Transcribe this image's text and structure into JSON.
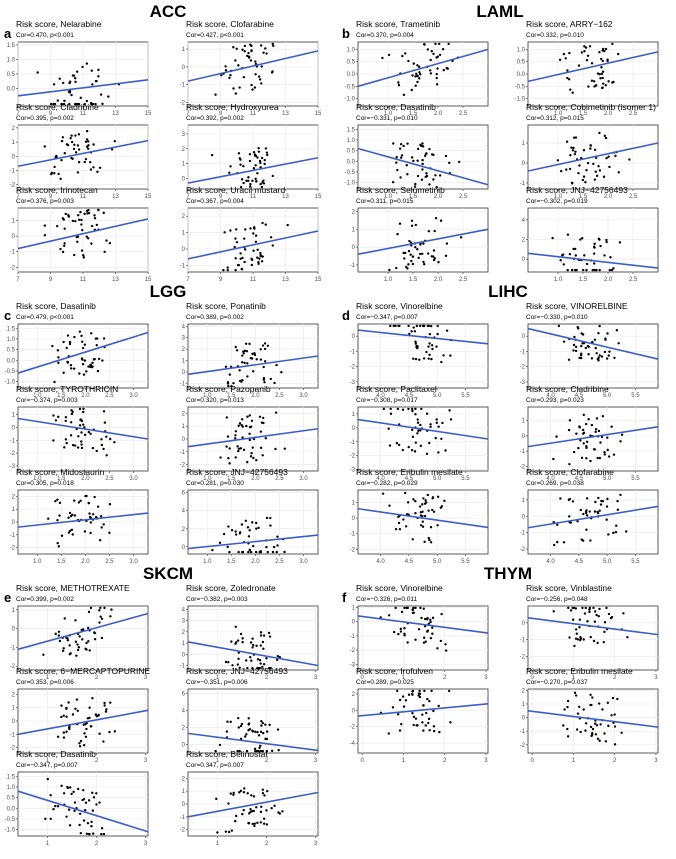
{
  "figure": {
    "sections": [
      {
        "cancer": "ACC",
        "letter": "a",
        "panels": [
          {
            "drug": "Nelarabine",
            "stat": "Cor=0.470, p<0.001"
          },
          {
            "drug": "Clofarabine",
            "stat": "Cor=0.427, p<0.001"
          },
          {
            "drug": "Cladribine",
            "stat": "Cor=0.395, p=0.002"
          },
          {
            "drug": "Hydroxyurea",
            "stat": "Cor=0.392, p=0.002"
          },
          {
            "drug": "Irinotecan",
            "stat": "Cor=0.376, p=0.003"
          },
          {
            "drug": "Uracil mustard",
            "stat": "Cor=0.367, p=0.004"
          }
        ]
      },
      {
        "cancer": "LAML",
        "letter": "b",
        "panels": [
          {
            "drug": "Trametinib",
            "stat": "Cor=0.370, p=0.004"
          },
          {
            "drug": "ARRY−162",
            "stat": "Cor=0.332, p=0.010"
          },
          {
            "drug": "Dasatinib",
            "stat": "Cor=−0.331, p=0.010"
          },
          {
            "drug": "Cobimetinib (isomer 1)",
            "stat": "Cor=0.312, p=0.015"
          },
          {
            "drug": "Selumetinib",
            "stat": "Cor=0.311, p=0.015"
          },
          {
            "drug": "JNJ−42756493",
            "stat": "Cor=−0.302, p=0.019"
          }
        ]
      },
      {
        "cancer": "LGG",
        "letter": "c",
        "panels": [
          {
            "drug": "Dasatinib",
            "stat": "Cor=0.479, p<0.001"
          },
          {
            "drug": "Ponatinib",
            "stat": "Cor=0.389, p=0.002"
          },
          {
            "drug": "TYROTHRICIN",
            "stat": "Cor=−0.374, p=0.003"
          },
          {
            "drug": "Pazopanib",
            "stat": "Cor=0.320, p=0.013"
          },
          {
            "drug": "Midostaurin",
            "stat": "Cor=0.305, p=0.018"
          },
          {
            "drug": "JNJ−42756493",
            "stat": "Cor=0.281, p=0.030"
          }
        ]
      },
      {
        "cancer": "LIHC",
        "letter": "d",
        "panels": [
          {
            "drug": "Vinorelbine",
            "stat": "Cor=−0.347, p=0.007"
          },
          {
            "drug": "VINORELBINE",
            "stat": "Cor=−0.330, p=0.010"
          },
          {
            "drug": "Paclitaxel",
            "stat": "Cor=−0.308, p=0.017"
          },
          {
            "drug": "Cladribine",
            "stat": "Cor=0.293, p=0.023"
          },
          {
            "drug": "Eribulin mesilate",
            "stat": "Cor=−0.282, p=0.029"
          },
          {
            "drug": "Clofarabine",
            "stat": "Cor=0.269, p=0.038"
          }
        ]
      },
      {
        "cancer": "SKCM",
        "letter": "e",
        "panels": [
          {
            "drug": "METHOTREXATE",
            "stat": "Cor=0.399, p=0.002"
          },
          {
            "drug": "Zoledronate",
            "stat": "Cor=−0.382, p=0.003"
          },
          {
            "drug": "6−MERCAPTOPURINE",
            "stat": "Cor=0.353, p=0.006"
          },
          {
            "drug": "JNJ−42756493",
            "stat": "Cor=−0.351, p=0.006"
          },
          {
            "drug": "Dasatinib",
            "stat": "Cor=−0.347, p=0.007"
          },
          {
            "drug": "Belinostat",
            "stat": "Cor=0.347, p=0.007"
          }
        ]
      },
      {
        "cancer": "THYM",
        "letter": "f",
        "panels": [
          {
            "drug": "Vinorelbine",
            "stat": "Cor=−0.326, p=0.011"
          },
          {
            "drug": "Vinblastine",
            "stat": "Cor=−0.256, p=0.048"
          },
          {
            "drug": "Irofulven",
            "stat": "Cor=0.289, p=0.025"
          },
          {
            "drug": "Eribulin mesilate",
            "stat": "Cor=−0.270, p=0.037"
          }
        ]
      }
    ],
    "risk_prefix": "Risk score, ",
    "colors": {
      "line": "#3a5fcd",
      "point": "#000000",
      "grid": "#ebebeb",
      "panel_border": "#333333"
    }
  },
  "chart_data": [
    {
      "type": "scatter",
      "panel": "a1",
      "xlim": [
        7,
        15
      ],
      "ylim": [
        -0.6,
        1.6
      ],
      "xticks": [
        "7",
        "9",
        "11",
        "13",
        "15"
      ],
      "yticks": [
        "0.0",
        "0.5",
        "1.0",
        "1.5"
      ],
      "trend": [
        [
          7,
          -0.25
        ],
        [
          15,
          0.3
        ]
      ]
    },
    {
      "type": "scatter",
      "panel": "a2",
      "xlim": [
        7,
        15
      ],
      "ylim": [
        -2.2,
        1.4
      ],
      "xticks": [
        "7",
        "9",
        "11",
        "13",
        "15"
      ],
      "yticks": [
        "-2",
        "-1",
        "0",
        "1"
      ],
      "trend": [
        [
          7,
          -0.8
        ],
        [
          15,
          0.9
        ]
      ]
    },
    {
      "type": "scatter",
      "panel": "a3",
      "xlim": [
        7,
        15
      ],
      "ylim": [
        -2.3,
        2.2
      ],
      "xticks": [
        "7",
        "9",
        "11",
        "13",
        "15"
      ],
      "yticks": [
        "-2",
        "-1",
        "0",
        "1",
        "2"
      ],
      "trend": [
        [
          7,
          -0.7
        ],
        [
          15,
          1.1
        ]
      ]
    },
    {
      "type": "scatter",
      "panel": "a4",
      "xlim": [
        7,
        15
      ],
      "ylim": [
        -0.7,
        3.6
      ],
      "xticks": [
        "7",
        "9",
        "11",
        "13",
        "15"
      ],
      "yticks": [
        "0",
        "1",
        "2",
        "3"
      ],
      "trend": [
        [
          7,
          -0.3
        ],
        [
          15,
          1.4
        ]
      ]
    },
    {
      "type": "scatter",
      "panel": "a5",
      "xlim": [
        7,
        15
      ],
      "ylim": [
        -2.3,
        1.8
      ],
      "xticks": [
        "7",
        "9",
        "11",
        "13",
        "15"
      ],
      "yticks": [
        "-2",
        "-1",
        "0",
        "1"
      ],
      "trend": [
        [
          7,
          -0.8
        ],
        [
          15,
          1.1
        ]
      ]
    },
    {
      "type": "scatter",
      "panel": "a6",
      "xlim": [
        7,
        15
      ],
      "ylim": [
        -1.4,
        2.5
      ],
      "xticks": [
        "7",
        "9",
        "11",
        "13",
        "15"
      ],
      "yticks": [
        "-1",
        "0",
        "1",
        "2"
      ],
      "trend": [
        [
          7,
          -0.6
        ],
        [
          15,
          1.1
        ]
      ]
    },
    {
      "type": "scatter",
      "panel": "b1",
      "xlim": [
        0.4,
        3.0
      ],
      "ylim": [
        -1.3,
        1.3
      ],
      "xticks": [
        "1.0",
        "1.5",
        "2.0",
        "2.5"
      ],
      "yticks": [
        "-1.0",
        "-0.5",
        "0.0",
        "0.5",
        "1.0"
      ],
      "trend": [
        [
          0.4,
          -0.5
        ],
        [
          3.0,
          1.0
        ]
      ]
    },
    {
      "type": "scatter",
      "panel": "b2",
      "xlim": [
        0.4,
        3.0
      ],
      "ylim": [
        -1.3,
        1.3
      ],
      "xticks": [
        "1.0",
        "1.5",
        "2.0",
        "2.5"
      ],
      "yticks": [
        "-1.0",
        "-0.5",
        "0.0",
        "0.5",
        "1.0"
      ],
      "trend": [
        [
          0.4,
          -0.3
        ],
        [
          3.0,
          0.9
        ]
      ]
    },
    {
      "type": "scatter",
      "panel": "b3",
      "xlim": [
        0.4,
        3.0
      ],
      "ylim": [
        -1.3,
        1.7
      ],
      "xticks": [
        "1.0",
        "1.5",
        "2.0",
        "2.5"
      ],
      "yticks": [
        "-1.0",
        "-0.5",
        "0.0",
        "0.5",
        "1.0",
        "1.5"
      ],
      "trend": [
        [
          0.4,
          0.6
        ],
        [
          3.0,
          -1.1
        ]
      ]
    },
    {
      "type": "scatter",
      "panel": "b4",
      "xlim": [
        0.4,
        3.0
      ],
      "ylim": [
        -1.3,
        1.9
      ],
      "xticks": [
        "1.0",
        "1.5",
        "2.0",
        "2.5"
      ],
      "yticks": [
        "-1",
        "0",
        "1"
      ],
      "trend": [
        [
          0.4,
          -0.4
        ],
        [
          3.0,
          1.0
        ]
      ]
    },
    {
      "type": "scatter",
      "panel": "b5",
      "xlim": [
        0.4,
        3.0
      ],
      "ylim": [
        -1.4,
        2.2
      ],
      "xticks": [
        "1.0",
        "1.5",
        "2.0",
        "2.5"
      ],
      "yticks": [
        "-1",
        "0",
        "1",
        "2"
      ],
      "trend": [
        [
          0.4,
          -0.4
        ],
        [
          3.0,
          1.0
        ]
      ]
    },
    {
      "type": "scatter",
      "panel": "b6",
      "xlim": [
        0.4,
        3.0
      ],
      "ylim": [
        -1.3,
        5.2
      ],
      "xticks": [
        "1.0",
        "1.5",
        "2.0",
        "2.5"
      ],
      "yticks": [
        "0",
        "2",
        "4"
      ],
      "trend": [
        [
          0.4,
          0.6
        ],
        [
          3.0,
          -0.9
        ]
      ]
    },
    {
      "type": "scatter",
      "panel": "c1",
      "xlim": [
        0.6,
        3.3
      ],
      "ylim": [
        -1.3,
        1.7
      ],
      "xticks": [
        "1.0",
        "1.5",
        "2.0",
        "2.5",
        "3.0"
      ],
      "yticks": [
        "-1.0",
        "-0.5",
        "0.0",
        "0.5",
        "1.0",
        "1.5"
      ],
      "trend": [
        [
          0.6,
          -0.6
        ],
        [
          3.3,
          1.3
        ]
      ]
    },
    {
      "type": "scatter",
      "panel": "c2",
      "xlim": [
        0.6,
        3.3
      ],
      "ylim": [
        -1.4,
        4.2
      ],
      "xticks": [
        "1.0",
        "1.5",
        "2.0",
        "2.5",
        "3.0"
      ],
      "yticks": [
        "-1",
        "0",
        "1",
        "2",
        "3",
        "4"
      ],
      "trend": [
        [
          0.6,
          -0.2
        ],
        [
          3.3,
          1.4
        ]
      ]
    },
    {
      "type": "scatter",
      "panel": "c3",
      "xlim": [
        0.6,
        3.3
      ],
      "ylim": [
        -3.4,
        1.6
      ],
      "xticks": [
        "1.0",
        "1.5",
        "2.0",
        "2.5",
        "3.0"
      ],
      "yticks": [
        "-3",
        "-2",
        "-1",
        "0",
        "1"
      ],
      "trend": [
        [
          0.6,
          0.7
        ],
        [
          3.3,
          -0.9
        ]
      ]
    },
    {
      "type": "scatter",
      "panel": "c4",
      "xlim": [
        0.6,
        3.3
      ],
      "ylim": [
        -2.5,
        2.5
      ],
      "xticks": [
        "1.0",
        "1.5",
        "2.0",
        "2.5",
        "3.0"
      ],
      "yticks": [
        "-2",
        "-1",
        "0",
        "1",
        "2"
      ],
      "trend": [
        [
          0.6,
          -0.6
        ],
        [
          3.3,
          0.8
        ]
      ]
    },
    {
      "type": "scatter",
      "panel": "c5",
      "xlim": [
        0.6,
        3.3
      ],
      "ylim": [
        -2.5,
        2.5
      ],
      "xticks": [
        "1.0",
        "1.5",
        "2.0",
        "2.5",
        "3.0"
      ],
      "yticks": [
        "-2",
        "-1",
        "0",
        "1",
        "2"
      ],
      "trend": [
        [
          0.6,
          -0.4
        ],
        [
          3.3,
          0.7
        ]
      ]
    },
    {
      "type": "scatter",
      "panel": "c6",
      "xlim": [
        0.6,
        3.3
      ],
      "ylim": [
        -0.8,
        6.3
      ],
      "xticks": [
        "1.0",
        "1.5",
        "2.0",
        "2.5",
        "3.0"
      ],
      "yticks": [
        "0",
        "2",
        "4",
        "6"
      ],
      "trend": [
        [
          0.6,
          -0.2
        ],
        [
          3.3,
          1.3
        ]
      ]
    },
    {
      "type": "scatter",
      "panel": "d1",
      "xlim": [
        3.6,
        5.9
      ],
      "ylim": [
        -3.4,
        0.8
      ],
      "xticks": [
        "4.0",
        "4.5",
        "5.0",
        "5.5"
      ],
      "yticks": [
        "-3",
        "-2",
        "-1",
        "0"
      ],
      "trend": [
        [
          3.6,
          0.4
        ],
        [
          5.9,
          -0.5
        ]
      ]
    },
    {
      "type": "scatter",
      "panel": "d2",
      "xlim": [
        3.6,
        5.9
      ],
      "ylim": [
        -3.4,
        0.8
      ],
      "xticks": [
        "4.0",
        "4.5",
        "5.0",
        "5.5"
      ],
      "yticks": [
        "-3",
        "-2",
        "-1",
        "0"
      ],
      "trend": [
        [
          3.6,
          0.5
        ],
        [
          5.9,
          -1.5
        ]
      ]
    },
    {
      "type": "scatter",
      "panel": "d3",
      "xlim": [
        3.6,
        5.9
      ],
      "ylim": [
        -3.1,
        1.5
      ],
      "xticks": [
        "4.0",
        "4.5",
        "5.0",
        "5.5"
      ],
      "yticks": [
        "-3",
        "-2",
        "-1",
        "0",
        "1"
      ],
      "trend": [
        [
          3.6,
          0.6
        ],
        [
          5.9,
          -0.8
        ]
      ]
    },
    {
      "type": "scatter",
      "panel": "d4",
      "xlim": [
        3.6,
        5.9
      ],
      "ylim": [
        -2.3,
        1.9
      ],
      "xticks": [
        "4.0",
        "4.5",
        "5.0",
        "5.5"
      ],
      "yticks": [
        "-2",
        "-1",
        "0",
        "1"
      ],
      "trend": [
        [
          3.6,
          -0.7
        ],
        [
          5.9,
          0.6
        ]
      ]
    },
    {
      "type": "scatter",
      "panel": "d5",
      "xlim": [
        3.6,
        5.9
      ],
      "ylim": [
        -2.3,
        1.8
      ],
      "xticks": [
        "4.0",
        "4.5",
        "5.0",
        "5.5"
      ],
      "yticks": [
        "-2",
        "-1",
        "0",
        "1"
      ],
      "trend": [
        [
          3.6,
          0.6
        ],
        [
          5.9,
          -0.6
        ]
      ]
    },
    {
      "type": "scatter",
      "panel": "d6",
      "xlim": [
        3.6,
        5.9
      ],
      "ylim": [
        -2.3,
        1.6
      ],
      "xticks": [
        "4.0",
        "4.5",
        "5.0",
        "5.5"
      ],
      "yticks": [
        "-2",
        "-1",
        "0",
        "1"
      ],
      "trend": [
        [
          3.6,
          -0.7
        ],
        [
          5.9,
          0.6
        ]
      ]
    },
    {
      "type": "scatter",
      "panel": "e1",
      "xlim": [
        0.4,
        3.05
      ],
      "ylim": [
        -2.2,
        1.2
      ],
      "xticks": [
        "1",
        "2",
        "3"
      ],
      "yticks": [
        "-2",
        "-1",
        "0",
        "1"
      ],
      "trend": [
        [
          0.4,
          -1.1
        ],
        [
          3.05,
          0.8
        ]
      ]
    },
    {
      "type": "scatter",
      "panel": "e2",
      "xlim": [
        0.4,
        3.05
      ],
      "ylim": [
        -1.4,
        4.3
      ],
      "xticks": [
        "1",
        "2",
        "3"
      ],
      "yticks": [
        "-1",
        "0",
        "1",
        "2",
        "3",
        "4"
      ],
      "trend": [
        [
          0.4,
          1.1
        ],
        [
          3.05,
          -1.0
        ]
      ]
    },
    {
      "type": "scatter",
      "panel": "e3",
      "xlim": [
        0.4,
        3.05
      ],
      "ylim": [
        -2.4,
        2.4
      ],
      "xticks": [
        "1",
        "2",
        "3"
      ],
      "yticks": [
        "-2",
        "-1",
        "0",
        "1",
        "2"
      ],
      "trend": [
        [
          0.4,
          -1.0
        ],
        [
          3.05,
          0.8
        ]
      ]
    },
    {
      "type": "scatter",
      "panel": "e4",
      "xlim": [
        0.4,
        3.05
      ],
      "ylim": [
        -1.0,
        6.5
      ],
      "xticks": [
        "1",
        "2",
        "3"
      ],
      "yticks": [
        "0",
        "2",
        "4",
        "6"
      ],
      "trend": [
        [
          0.4,
          1.3
        ],
        [
          3.05,
          -0.7
        ]
      ]
    },
    {
      "type": "scatter",
      "panel": "e5",
      "xlim": [
        0.4,
        3.05
      ],
      "ylim": [
        -1.3,
        1.7
      ],
      "xticks": [
        "1",
        "2",
        "3"
      ],
      "yticks": [
        "-1.0",
        "-0.5",
        "0.0",
        "0.5",
        "1.0",
        "1.5"
      ],
      "trend": [
        [
          0.4,
          0.8
        ],
        [
          3.05,
          -1.1
        ]
      ]
    },
    {
      "type": "scatter",
      "panel": "e6",
      "xlim": [
        0.4,
        3.05
      ],
      "ylim": [
        -2.5,
        2.5
      ],
      "xticks": [
        "1",
        "2",
        "3"
      ],
      "yticks": [
        "-2",
        "-1",
        "0",
        "1",
        "2"
      ],
      "trend": [
        [
          0.4,
          -1.0
        ],
        [
          3.05,
          0.9
        ]
      ]
    },
    {
      "type": "scatter",
      "panel": "f1",
      "xlim": [
        -0.1,
        3.05
      ],
      "ylim": [
        -3.4,
        1.1
      ],
      "xticks": [
        "0",
        "1",
        "2",
        "3"
      ],
      "yticks": [
        "-3",
        "-2",
        "-1",
        "0",
        "1"
      ],
      "trend": [
        [
          -0.1,
          0.4
        ],
        [
          3.05,
          -0.8
        ]
      ]
    },
    {
      "type": "scatter",
      "panel": "f2",
      "xlim": [
        -0.1,
        3.05
      ],
      "ylim": [
        -2.8,
        1.0
      ],
      "xticks": [
        "0",
        "1",
        "2",
        "3"
      ],
      "yticks": [
        "-2",
        "-1",
        "0"
      ],
      "trend": [
        [
          -0.1,
          0.3
        ],
        [
          3.05,
          -0.7
        ]
      ]
    },
    {
      "type": "scatter",
      "panel": "f3",
      "xlim": [
        -0.1,
        3.05
      ],
      "ylim": [
        -5.2,
        2.6
      ],
      "xticks": [
        "0",
        "1",
        "2",
        "3"
      ],
      "yticks": [
        "-4",
        "-2",
        "0",
        "2"
      ],
      "trend": [
        [
          -0.1,
          -0.7
        ],
        [
          3.05,
          0.8
        ]
      ]
    },
    {
      "type": "scatter",
      "panel": "f4",
      "xlim": [
        -0.1,
        3.05
      ],
      "ylim": [
        -2.6,
        2.1
      ],
      "xticks": [
        "0",
        "1",
        "2",
        "3"
      ],
      "yticks": [
        "-2",
        "-1",
        "0",
        "1",
        "2"
      ],
      "trend": [
        [
          -0.1,
          0.5
        ],
        [
          3.05,
          -0.7
        ]
      ]
    }
  ]
}
